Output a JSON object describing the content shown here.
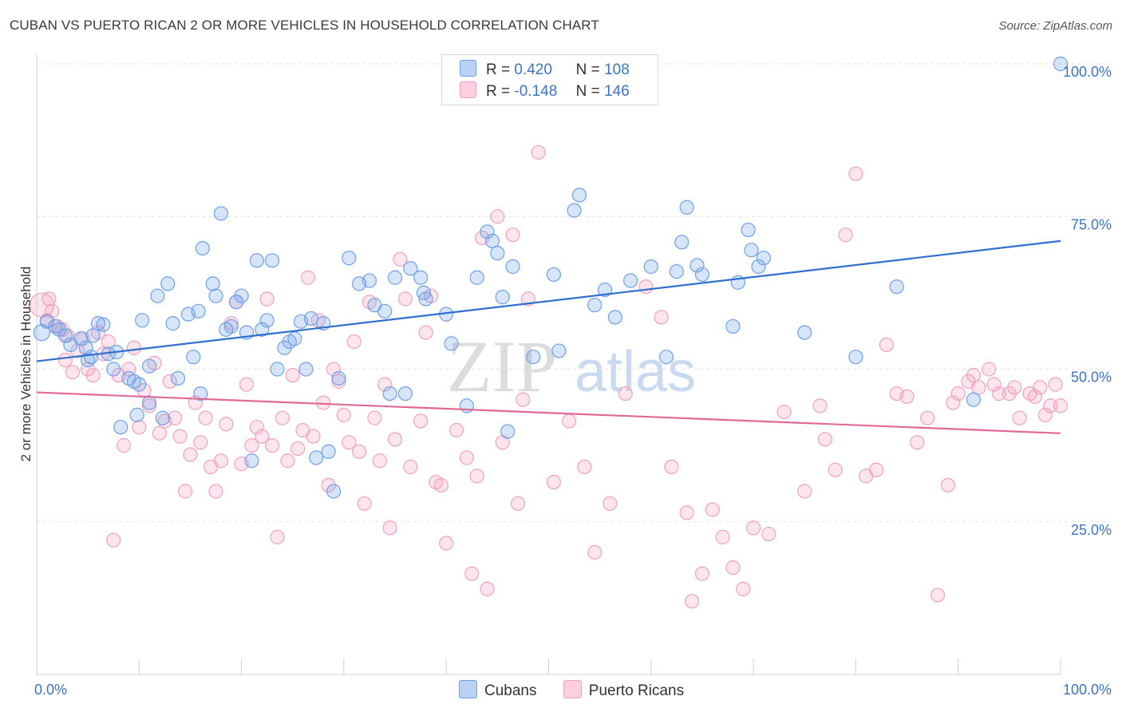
{
  "title": "CUBAN VS PUERTO RICAN 2 OR MORE VEHICLES IN HOUSEHOLD CORRELATION CHART",
  "source": "Source: ZipAtlas.com",
  "watermark": {
    "zip": "ZIP",
    "atlas": "atlas"
  },
  "legend": {
    "rows": [
      {
        "r_label": "R =",
        "r_value": "0.420",
        "n_label": "N =",
        "n_value": "108"
      },
      {
        "r_label": "R =",
        "r_value": "-0.148",
        "n_label": "N =",
        "n_value": "146"
      }
    ]
  },
  "bottom_legend": [
    "Cubans",
    "Puerto Ricans"
  ],
  "chart_data": {
    "type": "scatter",
    "ylabel": "2 or more Vehicles in Household",
    "xlim": [
      0,
      100
    ],
    "ylim": [
      0,
      100
    ],
    "x_tick_labels": [
      "0.0%",
      "100.0%"
    ],
    "y_ticks": [
      25,
      50,
      75,
      100
    ],
    "y_tick_labels": [
      "25.0%",
      "50.0%",
      "75.0%",
      "100.0%"
    ],
    "grid": true,
    "colors": {
      "cubans": "#6fa0e8",
      "cubans_line": "#2e6fd0",
      "puerto_ricans": "#f4a0bc",
      "puerto_ricans_line": "#e06a96"
    },
    "series": [
      {
        "name": "Cubans",
        "color": "#6fa0e8",
        "trend": {
          "x": [
            0,
            100
          ],
          "y": [
            51.3,
            71.0
          ]
        },
        "points": [
          [
            0.5,
            56.0
          ],
          [
            1.0,
            57.8
          ],
          [
            1.8,
            57.0
          ],
          [
            2.2,
            56.5
          ],
          [
            2.8,
            55.5
          ],
          [
            3.3,
            54.0
          ],
          [
            4.3,
            55.0
          ],
          [
            4.8,
            53.5
          ],
          [
            5.5,
            55.5
          ],
          [
            5.3,
            52.0
          ],
          [
            6.0,
            57.5
          ],
          [
            6.5,
            57.3
          ],
          [
            7.0,
            52.5
          ],
          [
            7.5,
            50.0
          ],
          [
            7.8,
            52.8
          ],
          [
            8.2,
            40.5
          ],
          [
            9.0,
            48.5
          ],
          [
            9.5,
            48.0
          ],
          [
            10.0,
            47.5
          ],
          [
            10.3,
            58.0
          ],
          [
            11.0,
            44.5
          ],
          [
            11.8,
            62.0
          ],
          [
            12.3,
            42.0
          ],
          [
            12.8,
            64.0
          ],
          [
            13.3,
            57.5
          ],
          [
            13.8,
            48.5
          ],
          [
            14.8,
            59.0
          ],
          [
            15.3,
            52.0
          ],
          [
            15.8,
            59.5
          ],
          [
            16.2,
            69.8
          ],
          [
            17.2,
            64.0
          ],
          [
            17.5,
            62.0
          ],
          [
            18.0,
            75.5
          ],
          [
            18.5,
            56.5
          ],
          [
            19.0,
            57.0
          ],
          [
            19.5,
            61.0
          ],
          [
            20.0,
            62.0
          ],
          [
            20.5,
            56.0
          ],
          [
            21.0,
            35.0
          ],
          [
            21.5,
            67.8
          ],
          [
            22.0,
            56.5
          ],
          [
            23.0,
            67.8
          ],
          [
            23.5,
            50.0
          ],
          [
            24.2,
            53.5
          ],
          [
            24.7,
            54.5
          ],
          [
            25.2,
            55.0
          ],
          [
            25.8,
            57.8
          ],
          [
            26.3,
            50.0
          ],
          [
            26.8,
            58.3
          ],
          [
            27.3,
            35.5
          ],
          [
            28.0,
            57.5
          ],
          [
            28.5,
            36.5
          ],
          [
            29.0,
            30.0
          ],
          [
            29.5,
            48.5
          ],
          [
            30.5,
            68.2
          ],
          [
            31.5,
            64.0
          ],
          [
            32.5,
            64.5
          ],
          [
            33.0,
            60.5
          ],
          [
            34.0,
            59.5
          ],
          [
            34.5,
            46.0
          ],
          [
            35.0,
            65.0
          ],
          [
            36.0,
            46.0
          ],
          [
            36.5,
            66.5
          ],
          [
            37.5,
            65.0
          ],
          [
            37.8,
            62.5
          ],
          [
            38.0,
            61.5
          ],
          [
            40.0,
            59.0
          ],
          [
            40.5,
            54.2
          ],
          [
            42.0,
            44.0
          ],
          [
            43.0,
            65.0
          ],
          [
            44.0,
            72.5
          ],
          [
            44.5,
            71.0
          ],
          [
            45.0,
            69.0
          ],
          [
            45.5,
            61.8
          ],
          [
            46.0,
            39.8
          ],
          [
            46.5,
            66.8
          ],
          [
            48.5,
            52.0
          ],
          [
            50.5,
            65.5
          ],
          [
            51.0,
            53.0
          ],
          [
            52.5,
            76.0
          ],
          [
            53.0,
            78.5
          ],
          [
            54.5,
            60.5
          ],
          [
            55.5,
            63.0
          ],
          [
            56.5,
            58.5
          ],
          [
            58.0,
            64.5
          ],
          [
            60.0,
            66.8
          ],
          [
            61.5,
            52.0
          ],
          [
            62.5,
            66.0
          ],
          [
            63.0,
            70.8
          ],
          [
            63.5,
            76.5
          ],
          [
            64.5,
            67.0
          ],
          [
            65.0,
            65.5
          ],
          [
            68.0,
            57.0
          ],
          [
            68.5,
            64.2
          ],
          [
            69.5,
            72.8
          ],
          [
            69.8,
            69.5
          ],
          [
            70.5,
            66.8
          ],
          [
            71.0,
            68.2
          ],
          [
            75.0,
            56.0
          ],
          [
            80.0,
            52.0
          ],
          [
            84.0,
            63.5
          ],
          [
            91.5,
            45.0
          ],
          [
            100.0,
            100.0
          ],
          [
            5.0,
            51.5
          ],
          [
            9.8,
            42.5
          ],
          [
            11.0,
            50.5
          ],
          [
            16.0,
            46.0
          ],
          [
            22.5,
            58.0
          ]
        ]
      },
      {
        "name": "Puerto Ricans",
        "color": "#f4a0bc",
        "trend": {
          "x": [
            0,
            100
          ],
          "y": [
            46.2,
            39.5
          ]
        },
        "points": [
          [
            0.5,
            60.5
          ],
          [
            1.0,
            58.0
          ],
          [
            1.5,
            59.5
          ],
          [
            2.0,
            57.0
          ],
          [
            2.5,
            56.5
          ],
          [
            3.0,
            55.5
          ],
          [
            3.5,
            49.5
          ],
          [
            4.0,
            53.0
          ],
          [
            4.5,
            55.0
          ],
          [
            5.0,
            50.0
          ],
          [
            5.5,
            49.0
          ],
          [
            6.0,
            56.0
          ],
          [
            6.5,
            52.5
          ],
          [
            7.0,
            54.5
          ],
          [
            7.5,
            22.0
          ],
          [
            8.0,
            49.0
          ],
          [
            8.5,
            37.5
          ],
          [
            9.0,
            50.0
          ],
          [
            9.5,
            53.5
          ],
          [
            10.0,
            40.5
          ],
          [
            10.5,
            46.5
          ],
          [
            11.0,
            44.0
          ],
          [
            11.5,
            51.0
          ],
          [
            12.0,
            39.5
          ],
          [
            12.5,
            41.5
          ],
          [
            13.0,
            48.0
          ],
          [
            13.5,
            42.0
          ],
          [
            14.0,
            39.0
          ],
          [
            14.5,
            30.0
          ],
          [
            15.0,
            36.0
          ],
          [
            15.5,
            44.5
          ],
          [
            16.0,
            38.0
          ],
          [
            16.5,
            42.0
          ],
          [
            17.0,
            34.0
          ],
          [
            17.5,
            30.0
          ],
          [
            18.0,
            35.0
          ],
          [
            18.5,
            41.0
          ],
          [
            19.0,
            57.5
          ],
          [
            19.5,
            61.0
          ],
          [
            20.0,
            34.5
          ],
          [
            20.5,
            47.5
          ],
          [
            21.0,
            37.5
          ],
          [
            21.5,
            40.5
          ],
          [
            22.0,
            39.0
          ],
          [
            22.5,
            61.5
          ],
          [
            23.0,
            37.5
          ],
          [
            23.5,
            22.5
          ],
          [
            24.0,
            42.0
          ],
          [
            24.5,
            35.0
          ],
          [
            25.0,
            49.0
          ],
          [
            25.5,
            37.0
          ],
          [
            26.0,
            40.0
          ],
          [
            26.5,
            65.0
          ],
          [
            27.0,
            39.0
          ],
          [
            27.5,
            58.0
          ],
          [
            28.0,
            44.5
          ],
          [
            28.5,
            31.0
          ],
          [
            29.0,
            50.0
          ],
          [
            29.5,
            48.0
          ],
          [
            30.0,
            42.5
          ],
          [
            30.5,
            38.0
          ],
          [
            31.0,
            54.5
          ],
          [
            31.5,
            36.5
          ],
          [
            32.0,
            28.0
          ],
          [
            32.5,
            61.0
          ],
          [
            33.0,
            42.0
          ],
          [
            33.5,
            35.0
          ],
          [
            34.0,
            47.5
          ],
          [
            34.5,
            24.0
          ],
          [
            35.0,
            38.5
          ],
          [
            35.5,
            68.0
          ],
          [
            36.0,
            61.5
          ],
          [
            36.5,
            34.0
          ],
          [
            37.5,
            41.5
          ],
          [
            38.0,
            56.0
          ],
          [
            38.5,
            62.0
          ],
          [
            39.0,
            31.5
          ],
          [
            39.5,
            31.0
          ],
          [
            40.0,
            21.5
          ],
          [
            41.0,
            40.0
          ],
          [
            42.0,
            35.5
          ],
          [
            42.5,
            16.5
          ],
          [
            43.0,
            32.5
          ],
          [
            43.5,
            71.5
          ],
          [
            44.0,
            14.0
          ],
          [
            45.0,
            75.0
          ],
          [
            45.5,
            38.0
          ],
          [
            46.5,
            72.0
          ],
          [
            47.0,
            28.0
          ],
          [
            47.5,
            45.0
          ],
          [
            48.0,
            61.5
          ],
          [
            49.0,
            85.5
          ],
          [
            50.5,
            31.5
          ],
          [
            52.0,
            41.5
          ],
          [
            53.5,
            34.0
          ],
          [
            54.5,
            20.0
          ],
          [
            56.0,
            28.0
          ],
          [
            57.5,
            46.0
          ],
          [
            59.5,
            63.5
          ],
          [
            61.0,
            58.5
          ],
          [
            62.0,
            34.0
          ],
          [
            63.5,
            26.5
          ],
          [
            64.0,
            12.0
          ],
          [
            65.0,
            16.5
          ],
          [
            66.0,
            27.0
          ],
          [
            67.0,
            22.5
          ],
          [
            68.0,
            17.5
          ],
          [
            69.0,
            14.0
          ],
          [
            70.0,
            24.0
          ],
          [
            71.5,
            23.0
          ],
          [
            73.0,
            43.0
          ],
          [
            75.0,
            30.0
          ],
          [
            76.5,
            44.0
          ],
          [
            77.0,
            38.5
          ],
          [
            78.0,
            33.5
          ],
          [
            79.0,
            72.0
          ],
          [
            80.0,
            82.0
          ],
          [
            81.0,
            32.5
          ],
          [
            82.0,
            33.5
          ],
          [
            83.0,
            54.0
          ],
          [
            84.0,
            46.0
          ],
          [
            85.0,
            45.5
          ],
          [
            86.0,
            38.0
          ],
          [
            87.0,
            42.0
          ],
          [
            88.0,
            13.0
          ],
          [
            89.0,
            31.0
          ],
          [
            89.5,
            44.5
          ],
          [
            90.0,
            46.0
          ],
          [
            91.0,
            48.0
          ],
          [
            91.5,
            49.0
          ],
          [
            92.0,
            47.0
          ],
          [
            93.0,
            50.0
          ],
          [
            93.5,
            47.5
          ],
          [
            94.0,
            46.0
          ],
          [
            95.0,
            46.0
          ],
          [
            95.5,
            47.0
          ],
          [
            96.0,
            42.0
          ],
          [
            97.0,
            46.0
          ],
          [
            97.5,
            45.5
          ],
          [
            98.0,
            47.0
          ],
          [
            98.5,
            42.5
          ],
          [
            99.0,
            44.0
          ],
          [
            99.5,
            47.5
          ],
          [
            100.0,
            44.0
          ],
          [
            1.2,
            61.5
          ],
          [
            2.8,
            51.5
          ]
        ]
      }
    ]
  }
}
